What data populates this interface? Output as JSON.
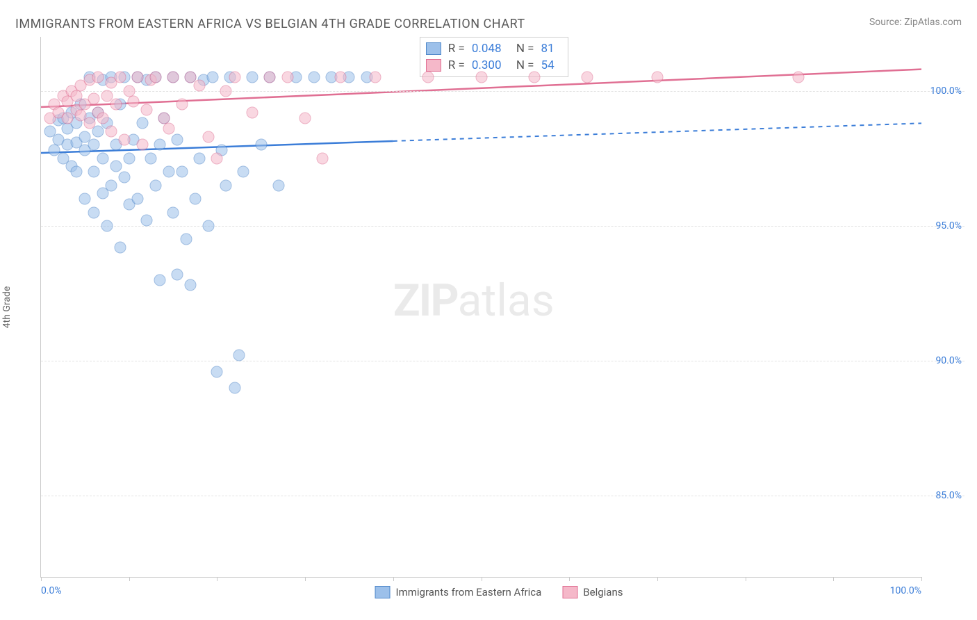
{
  "title": "IMMIGRANTS FROM EASTERN AFRICA VS BELGIAN 4TH GRADE CORRELATION CHART",
  "source": "Source: ZipAtlas.com",
  "ylabel": "4th Grade",
  "watermark": {
    "zip": "ZIP",
    "atlas": "atlas"
  },
  "chart": {
    "type": "scatter",
    "xlim": [
      0,
      100
    ],
    "ylim": [
      82,
      102
    ],
    "x_tick_percent_step": 10,
    "x_labels_at": [
      0,
      100
    ],
    "y_ticks": [
      85,
      90,
      95,
      100
    ],
    "y_tick_labels": [
      "85.0%",
      "90.0%",
      "95.0%",
      "100.0%"
    ],
    "x_tick_labels": [
      "0.0%",
      "100.0%"
    ],
    "background_color": "#ffffff",
    "grid_color": "#e2e2e2",
    "axis_color": "#c9c9c9",
    "ytick_label_color": "#3b7dd8",
    "point_radius": 8.5,
    "point_opacity": 0.55,
    "series": [
      {
        "name": "Immigrants from Eastern Africa",
        "short": "blue",
        "fill": "#9cc0ea",
        "stroke": "#4f87c9",
        "line_color": "#3b7dd8",
        "R": "0.048",
        "N": "81",
        "trend": {
          "y_at_x0": 97.7,
          "y_at_x100": 98.8,
          "solid_to_x": 40
        },
        "points": [
          [
            1,
            98.5
          ],
          [
            1.5,
            97.8
          ],
          [
            2,
            98.2
          ],
          [
            2,
            98.9
          ],
          [
            2.5,
            97.5
          ],
          [
            2.5,
            99.0
          ],
          [
            3,
            98.0
          ],
          [
            3,
            98.6
          ],
          [
            3.5,
            97.2
          ],
          [
            3.5,
            99.2
          ],
          [
            4,
            97.0
          ],
          [
            4,
            98.1
          ],
          [
            4,
            98.8
          ],
          [
            4.5,
            99.5
          ],
          [
            5,
            96.0
          ],
          [
            5,
            97.8
          ],
          [
            5,
            98.3
          ],
          [
            5.5,
            99.0
          ],
          [
            5.5,
            100.5
          ],
          [
            6,
            95.5
          ],
          [
            6,
            97.0
          ],
          [
            6,
            98.0
          ],
          [
            6.5,
            98.5
          ],
          [
            6.5,
            99.2
          ],
          [
            7,
            96.2
          ],
          [
            7,
            97.5
          ],
          [
            7,
            100.4
          ],
          [
            7.5,
            98.8
          ],
          [
            7.5,
            95.0
          ],
          [
            8,
            96.5
          ],
          [
            8,
            100.5
          ],
          [
            8.5,
            97.2
          ],
          [
            8.5,
            98.0
          ],
          [
            9,
            94.2
          ],
          [
            9,
            99.5
          ],
          [
            9.5,
            96.8
          ],
          [
            9.5,
            100.5
          ],
          [
            10,
            95.8
          ],
          [
            10,
            97.5
          ],
          [
            10.5,
            98.2
          ],
          [
            11,
            100.5
          ],
          [
            11,
            96.0
          ],
          [
            11.5,
            98.8
          ],
          [
            12,
            95.2
          ],
          [
            12,
            100.4
          ],
          [
            12.5,
            97.5
          ],
          [
            13,
            100.5
          ],
          [
            13,
            96.5
          ],
          [
            13.5,
            93.0
          ],
          [
            13.5,
            98.0
          ],
          [
            14,
            99.0
          ],
          [
            14.5,
            97.0
          ],
          [
            15,
            95.5
          ],
          [
            15,
            100.5
          ],
          [
            15.5,
            93.2
          ],
          [
            15.5,
            98.2
          ],
          [
            16,
            97.0
          ],
          [
            16.5,
            94.5
          ],
          [
            17,
            92.8
          ],
          [
            17,
            100.5
          ],
          [
            17.5,
            96.0
          ],
          [
            18,
            97.5
          ],
          [
            18.5,
            100.4
          ],
          [
            19,
            95.0
          ],
          [
            19.5,
            100.5
          ],
          [
            20,
            89.6
          ],
          [
            20.5,
            97.8
          ],
          [
            21,
            96.5
          ],
          [
            21.5,
            100.5
          ],
          [
            22,
            89.0
          ],
          [
            22.5,
            90.2
          ],
          [
            23,
            97.0
          ],
          [
            24,
            100.5
          ],
          [
            25,
            98.0
          ],
          [
            26,
            100.5
          ],
          [
            27,
            96.5
          ],
          [
            29,
            100.5
          ],
          [
            31,
            100.5
          ],
          [
            33,
            100.5
          ],
          [
            35,
            100.5
          ],
          [
            37,
            100.5
          ]
        ]
      },
      {
        "name": "Belgians",
        "short": "pink",
        "fill": "#f5b8c9",
        "stroke": "#e06f93",
        "line_color": "#e06f93",
        "R": "0.300",
        "N": "54",
        "trend": {
          "y_at_x0": 99.4,
          "y_at_x100": 100.8,
          "solid_to_x": 100
        },
        "points": [
          [
            1,
            99.0
          ],
          [
            1.5,
            99.5
          ],
          [
            2,
            99.2
          ],
          [
            2.5,
            99.8
          ],
          [
            3,
            99.0
          ],
          [
            3,
            99.6
          ],
          [
            3.5,
            100.0
          ],
          [
            4,
            99.3
          ],
          [
            4,
            99.8
          ],
          [
            4.5,
            99.1
          ],
          [
            4.5,
            100.2
          ],
          [
            5,
            99.5
          ],
          [
            5.5,
            98.8
          ],
          [
            5.5,
            100.4
          ],
          [
            6,
            99.7
          ],
          [
            6.5,
            99.2
          ],
          [
            6.5,
            100.5
          ],
          [
            7,
            99.0
          ],
          [
            7.5,
            99.8
          ],
          [
            8,
            100.3
          ],
          [
            8,
            98.5
          ],
          [
            8.5,
            99.5
          ],
          [
            9,
            100.5
          ],
          [
            9.5,
            98.2
          ],
          [
            10,
            100.0
          ],
          [
            10.5,
            99.6
          ],
          [
            11,
            100.5
          ],
          [
            11.5,
            98.0
          ],
          [
            12,
            99.3
          ],
          [
            12.5,
            100.4
          ],
          [
            13,
            100.5
          ],
          [
            14,
            99.0
          ],
          [
            14.5,
            98.6
          ],
          [
            15,
            100.5
          ],
          [
            16,
            99.5
          ],
          [
            17,
            100.5
          ],
          [
            18,
            100.2
          ],
          [
            19,
            98.3
          ],
          [
            20,
            97.5
          ],
          [
            21,
            100.0
          ],
          [
            22,
            100.5
          ],
          [
            24,
            99.2
          ],
          [
            26,
            100.5
          ],
          [
            28,
            100.5
          ],
          [
            30,
            99.0
          ],
          [
            32,
            97.5
          ],
          [
            34,
            100.5
          ],
          [
            38,
            100.5
          ],
          [
            44,
            100.5
          ],
          [
            50,
            100.5
          ],
          [
            56,
            100.5
          ],
          [
            62,
            100.5
          ],
          [
            70,
            100.5
          ],
          [
            86,
            100.5
          ]
        ]
      }
    ]
  },
  "legend_stats": {
    "r_label": "R =",
    "n_label": "N ="
  },
  "bottom_legend": {
    "items": [
      "Immigrants from Eastern Africa",
      "Belgians"
    ]
  }
}
